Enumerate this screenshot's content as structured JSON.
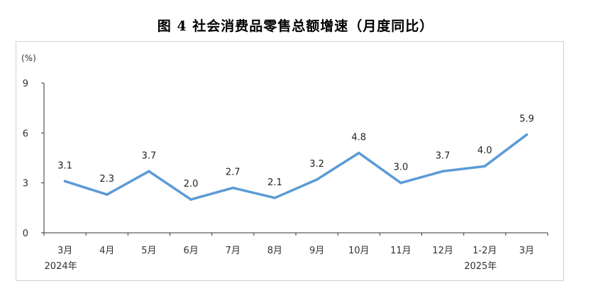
{
  "title": "图 4    社会消费品零售总额增速（月度同比）",
  "chart_data": {
    "type": "line",
    "title": "图 4    社会消费品零售总额增速（月度同比）",
    "unit_label": "(%)",
    "categories": [
      "3月",
      "4月",
      "5月",
      "6月",
      "7月",
      "8月",
      "9月",
      "10月",
      "11月",
      "12月",
      "1-2月",
      "3月"
    ],
    "year_labels": [
      "2024年",
      "",
      "",
      "",
      "",
      "",
      "",
      "",
      "",
      "",
      "2025年",
      ""
    ],
    "series": [
      {
        "values": [
          3.1,
          2.3,
          3.7,
          2.0,
          2.7,
          2.1,
          3.2,
          4.8,
          3.0,
          3.7,
          4.0,
          5.9
        ]
      }
    ],
    "value_labels": [
      "3.1",
      "2.3",
      "3.7",
      "2.0",
      "2.7",
      "2.1",
      "3.2",
      "4.8",
      "3.0",
      "3.7",
      "4.0",
      "5.9"
    ],
    "yticks": [
      "0",
      "3",
      "6",
      "9"
    ],
    "ylim": [
      0,
      9
    ],
    "grid": false,
    "line_color": "#5b9bd5"
  }
}
